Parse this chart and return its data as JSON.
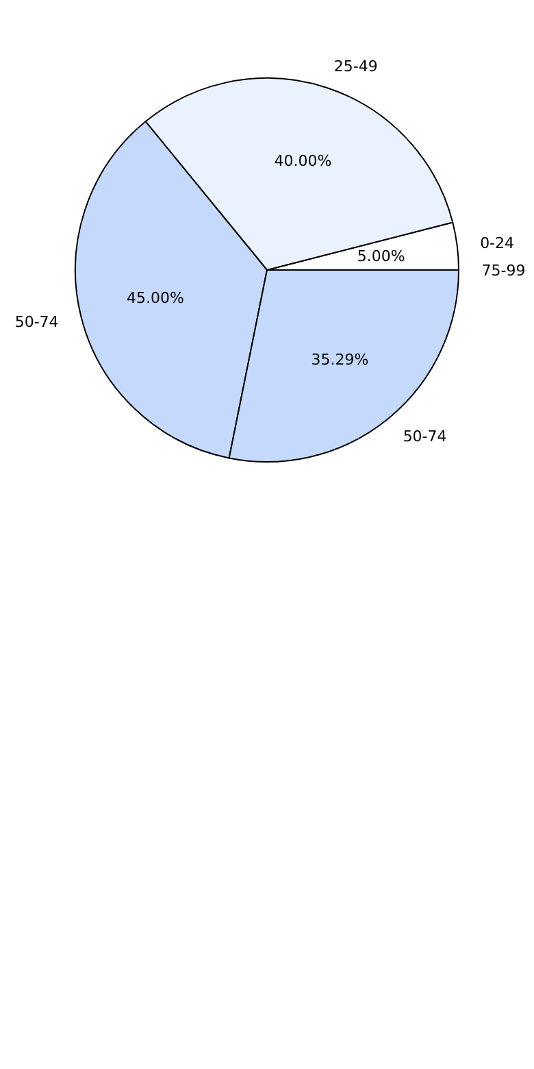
{
  "chart_data": {
    "type": "pie",
    "categories": [
      "0-24",
      "25-49",
      "50-74",
      "50-74",
      "75-99"
    ],
    "values": [
      5,
      40,
      45,
      35.29,
      0
    ],
    "value_labels": [
      "5.00%",
      "40.00%",
      "45.00%",
      "35.29%",
      null
    ],
    "colors": [
      "#ffffff",
      "#eaf1ff",
      "#c5d9fd",
      "#c5d9fd",
      "#c5d9fd"
    ]
  }
}
